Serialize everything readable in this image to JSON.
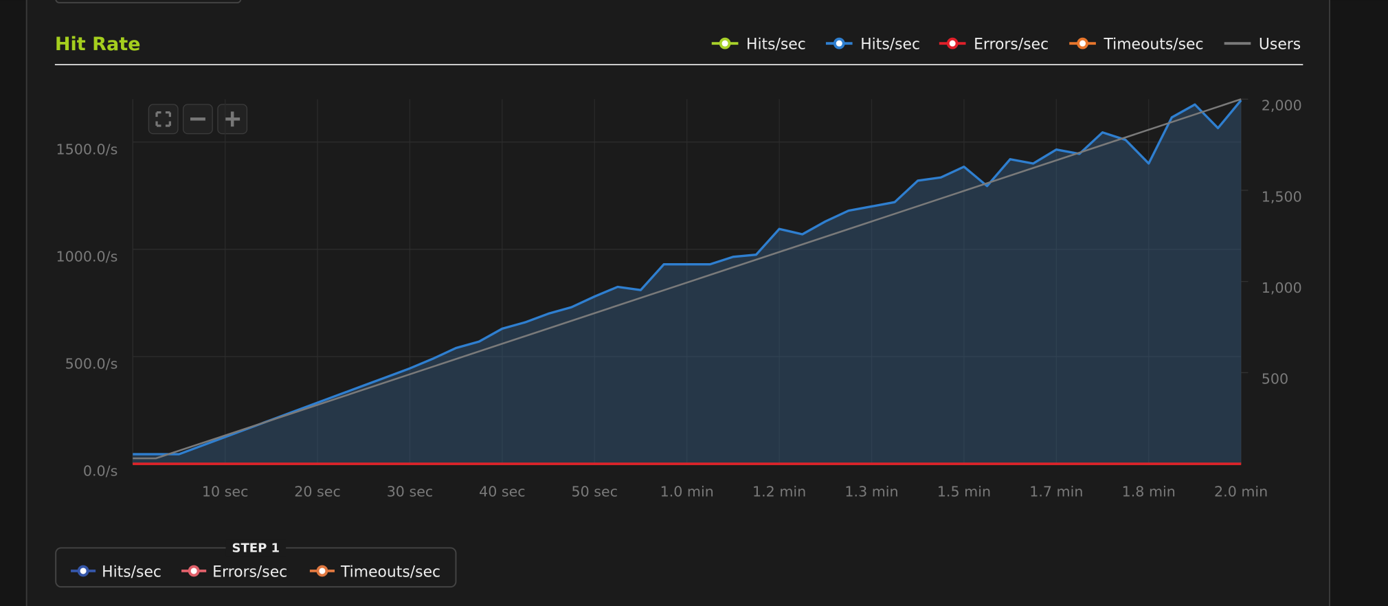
{
  "chart_data": {
    "type": "line",
    "title": "Hit Rate",
    "legend": [
      {
        "name": "Hits/sec",
        "color": "#a8d12a"
      },
      {
        "name": "Hits/sec",
        "color": "#2f7fd0"
      },
      {
        "name": "Errors/sec",
        "color": "#e0202a"
      },
      {
        "name": "Timeouts/sec",
        "color": "#e8762c"
      },
      {
        "name": "Users",
        "color": "#7a7a7a"
      }
    ],
    "step_legend": {
      "title": "STEP 1",
      "items": [
        {
          "name": "Hits/sec",
          "color": "#3556a8"
        },
        {
          "name": "Errors/sec",
          "color": "#e0606a"
        },
        {
          "name": "Timeouts/sec",
          "color": "#e07840"
        }
      ]
    },
    "xlim": [
      0,
      120
    ],
    "xticks": [
      {
        "value": 10,
        "label": "10 sec"
      },
      {
        "value": 20,
        "label": "20 sec"
      },
      {
        "value": 30,
        "label": "30 sec"
      },
      {
        "value": 40,
        "label": "40 sec"
      },
      {
        "value": 50,
        "label": "50 sec"
      },
      {
        "value": 60,
        "label": "1.0 min"
      },
      {
        "value": 70,
        "label": "1.2 min"
      },
      {
        "value": 80,
        "label": "1.3 min"
      },
      {
        "value": 90,
        "label": "1.5 min"
      },
      {
        "value": 100,
        "label": "1.7 min"
      },
      {
        "value": 110,
        "label": "1.8 min"
      },
      {
        "value": 120,
        "label": "2.0 min"
      }
    ],
    "ylim": [
      0,
      1700
    ],
    "yticks": [
      {
        "value": 0,
        "label": "0.0/s"
      },
      {
        "value": 500,
        "label": "500.0/s"
      },
      {
        "value": 1000,
        "label": "1000.0/s"
      },
      {
        "value": 1500,
        "label": "1500.0/s"
      }
    ],
    "y2lim": [
      0,
      2000
    ],
    "y2ticks": [
      500,
      {
        "value": 1000,
        "label": "1,000"
      },
      {
        "value": 1500,
        "label": "1,500"
      },
      {
        "value": 2000,
        "label": "2,000"
      }
    ],
    "grid": true,
    "series": [
      {
        "name": "Hits/sec",
        "color": "#2f7fd0",
        "area": true,
        "x": [
          0,
          2.5,
          5,
          7.5,
          10,
          12.5,
          15,
          17.5,
          20,
          22.5,
          25,
          27.5,
          30,
          32.5,
          35,
          37.5,
          40,
          42.5,
          45,
          47.5,
          50,
          52.5,
          55,
          57.5,
          60,
          62.5,
          65,
          67.5,
          70,
          72.5,
          75,
          77.5,
          80,
          82.5,
          85,
          87.5,
          90,
          92.5,
          95,
          97.5,
          100,
          102.5,
          105,
          107.5,
          110,
          112.5,
          115,
          117.5,
          120
        ],
        "values": [
          45,
          45,
          45,
          85,
          125,
          165,
          205,
          245,
          285,
          325,
          365,
          405,
          445,
          490,
          540,
          570,
          630,
          660,
          700,
          730,
          780,
          825,
          810,
          930,
          930,
          930,
          965,
          975,
          1095,
          1070,
          1130,
          1180,
          1200,
          1220,
          1320,
          1335,
          1385,
          1295,
          1420,
          1400,
          1465,
          1445,
          1545,
          1510,
          1400,
          1615,
          1675,
          1565,
          1695
        ]
      },
      {
        "name": "Timeouts/sec",
        "color": "#e8762c",
        "x": [
          0,
          120
        ],
        "values": [
          0,
          0
        ]
      },
      {
        "name": "Errors/sec",
        "color": "#e0202a",
        "x": [
          0,
          120
        ],
        "values": [
          0,
          0
        ]
      },
      {
        "name": "Users",
        "color": "#7a7a7a",
        "axis": "y2",
        "x": [
          0,
          2.5,
          120
        ],
        "values": [
          30,
          30,
          2000
        ]
      }
    ]
  }
}
